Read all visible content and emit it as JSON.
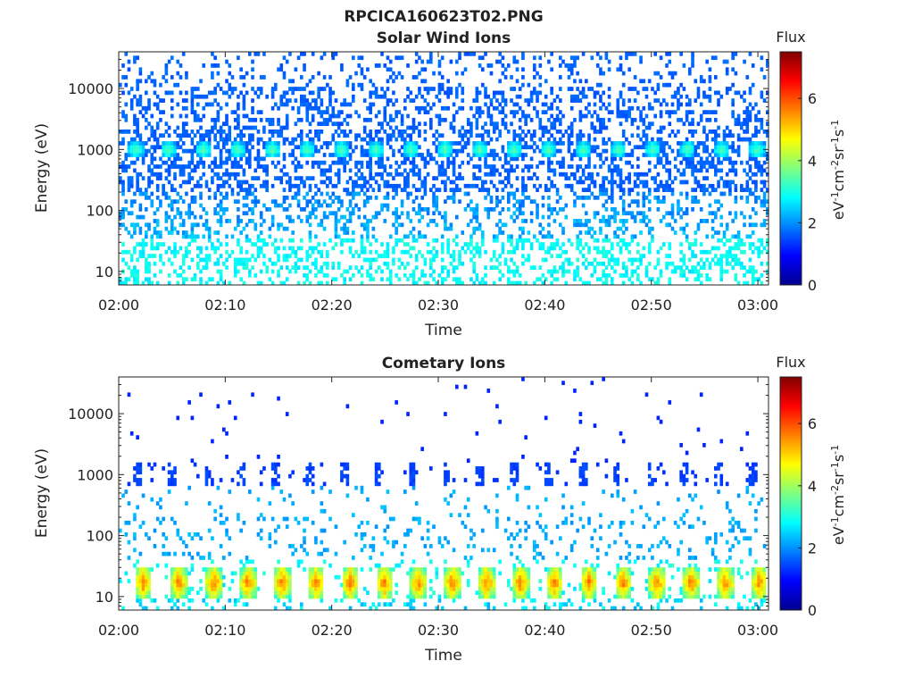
{
  "figure_title": "RPCICA160623T02.PNG",
  "chart_data": [
    {
      "type": "heatmap",
      "title": "Solar Wind Ions",
      "xlabel": "Time",
      "ylabel": "Energy (eV)",
      "yscale": "log",
      "ylim": [
        6,
        40000
      ],
      "xlim": [
        "02:00",
        "03:01"
      ],
      "x_ticks": [
        "02:00",
        "02:10",
        "02:20",
        "02:30",
        "02:40",
        "02:50",
        "03:00"
      ],
      "y_ticks": [
        "10",
        "100",
        "1000",
        "10000"
      ],
      "colorbar": {
        "label": "Flux",
        "unit_label": "eV-1cm-2sr-1s-1",
        "range": [
          0,
          7.5
        ],
        "ticks": [
          "0",
          "2",
          "4",
          "6"
        ],
        "colormap": "jet"
      },
      "blob_times_min": [
        1.5,
        4.5,
        7.8,
        11.0,
        14.3,
        17.5,
        20.8,
        24.0,
        27.3,
        30.5,
        33.8,
        37.0,
        40.2,
        43.5,
        46.8,
        50.0,
        53.3,
        56.5,
        59.8
      ],
      "blob_energy_ev": 1000,
      "blob_flux": 3.5,
      "background_flux": 1.5,
      "low_energy_flux": 2.6,
      "grid": false
    },
    {
      "type": "heatmap",
      "title": "Cometary Ions",
      "xlabel": "Time",
      "ylabel": "Energy (eV)",
      "yscale": "log",
      "ylim": [
        6,
        40000
      ],
      "xlim": [
        "02:00",
        "03:01"
      ],
      "x_ticks": [
        "02:00",
        "02:10",
        "02:20",
        "02:30",
        "02:40",
        "02:50",
        "03:00"
      ],
      "y_ticks": [
        "10",
        "100",
        "1000",
        "10000"
      ],
      "colorbar": {
        "label": "Flux",
        "unit_label": "eV-1cm-2sr-1s-1",
        "range": [
          0,
          7.5
        ],
        "ticks": [
          "0",
          "2",
          "4",
          "6"
        ],
        "colormap": "jet"
      },
      "low_energy_burst_times_min": [
        2.2,
        5.5,
        8.8,
        12.0,
        15.2,
        18.4,
        21.6,
        24.8,
        28.0,
        31.2,
        34.4,
        37.6,
        40.8,
        44.0,
        47.2,
        50.4,
        53.6,
        56.8,
        60.0
      ],
      "low_energy_burst_energy_ev": 17,
      "low_energy_burst_flux": 5.5,
      "mid_energy_blob_flux": 1.3,
      "grid": false
    }
  ]
}
